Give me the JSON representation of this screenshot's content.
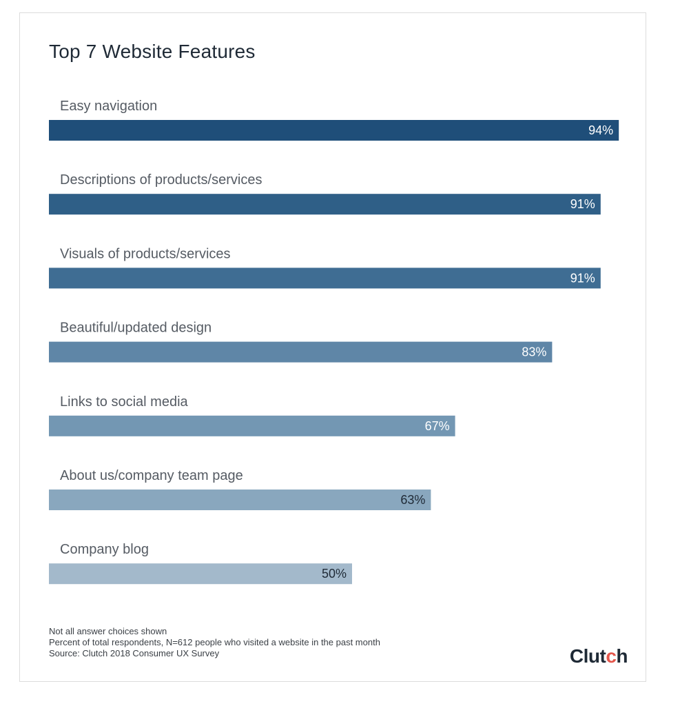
{
  "chart_data": {
    "type": "bar",
    "orientation": "horizontal",
    "title": "Top 7 Website Features",
    "categories": [
      "Easy navigation",
      "Descriptions of products/services",
      "Visuals of products/services",
      "Beautiful/updated design",
      "Links to social media",
      "About us/company team page",
      "Company blog"
    ],
    "values": [
      94,
      91,
      91,
      83,
      67,
      63,
      50
    ],
    "value_labels": [
      "94%",
      "91%",
      "91%",
      "83%",
      "67%",
      "63%",
      "50%"
    ],
    "unit": "%",
    "xlim": [
      0,
      100
    ],
    "grid": false,
    "bar_colors": [
      "#1f4e79",
      "#2f5f87",
      "#3f6d93",
      "#5f86a7",
      "#7397b3",
      "#89a7be",
      "#a3b9cb"
    ],
    "label_colors": [
      "#ffffff",
      "#ffffff",
      "#ffffff",
      "#ffffff",
      "#ffffff",
      "#1f2a36",
      "#1f2a36"
    ]
  },
  "footnotes": {
    "line1": "Not all answer choices shown",
    "line2": "Percent of total respondents, N=612 people who visited a website in the past month",
    "line3": "Source: Clutch 2018 Consumer UX Survey"
  },
  "logo": {
    "text_before": "Clut",
    "text_accent": "c",
    "text_after": "h",
    "accent_color": "#e4564b"
  }
}
